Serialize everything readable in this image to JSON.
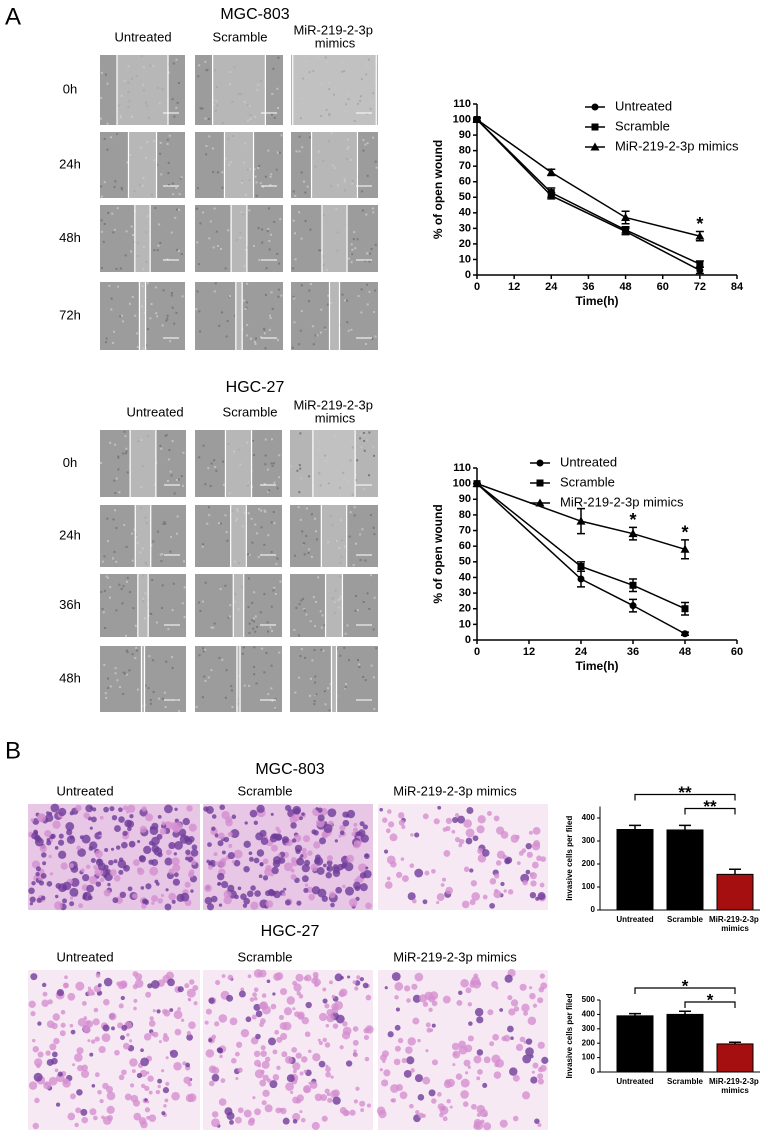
{
  "panel_labels": [
    "A",
    "B"
  ],
  "wound": [
    {
      "title": "MGC-803",
      "columns": [
        "Untreated",
        "Scramble",
        "MiR-219-2-3p mimics"
      ],
      "rows": [
        "0h",
        "24h",
        "48h",
        "72h"
      ]
    },
    {
      "title": "HGC-27",
      "columns": [
        "Untreated",
        "Scramble",
        "MiR-219-2-3p mimics"
      ],
      "rows": [
        "0h",
        "24h",
        "36h",
        "48h"
      ]
    }
  ],
  "invasion": [
    {
      "title": "MGC-803",
      "columns": [
        "Untreated",
        "Scramble",
        "MiR-219-2-3p mimics"
      ]
    },
    {
      "title": "HGC-27",
      "columns": [
        "Untreated",
        "Scramble",
        "MiR-219-2-3p mimics"
      ]
    }
  ],
  "chart_data": [
    {
      "type": "line",
      "x_label": "Time(h)",
      "y_label": "% of open wound",
      "x": [
        0,
        24,
        48,
        72
      ],
      "series": [
        {
          "name": "Untreated",
          "color": "#000000",
          "marker": "circle",
          "values": [
            100,
            51,
            28,
            3
          ],
          "errors": [
            1,
            2,
            2,
            2
          ]
        },
        {
          "name": "Scramble",
          "color": "#000000",
          "marker": "square",
          "values": [
            100,
            53,
            29,
            7
          ],
          "errors": [
            1,
            3,
            2,
            2
          ]
        },
        {
          "name": "MiR-219-2-3p mimics",
          "color": "#000000",
          "marker": "triangle",
          "values": [
            100,
            66,
            37,
            25
          ],
          "errors": [
            1,
            2,
            4,
            3
          ]
        }
      ],
      "xlim": [
        0,
        84
      ],
      "xticks": [
        0,
        12,
        24,
        36,
        48,
        60,
        72,
        84
      ],
      "ylim": [
        0,
        110
      ],
      "yticks": [
        0,
        10,
        20,
        30,
        40,
        50,
        60,
        70,
        80,
        90,
        100,
        110
      ],
      "annotations": [
        {
          "text": "*",
          "x": 72
        }
      ]
    },
    {
      "type": "line",
      "x_label": "Time(h)",
      "y_label": "% of open wound",
      "x": [
        0,
        24,
        36,
        48
      ],
      "series": [
        {
          "name": "Untreated",
          "color": "#000000",
          "marker": "circle",
          "values": [
            100,
            39,
            22,
            4
          ],
          "errors": [
            0,
            5,
            4,
            1
          ]
        },
        {
          "name": "Scramble",
          "color": "#000000",
          "marker": "square",
          "values": [
            100,
            47,
            35,
            20
          ],
          "errors": [
            0,
            3,
            4,
            4
          ]
        },
        {
          "name": "MiR-219-2-3p mimics",
          "color": "#000000",
          "marker": "triangle",
          "values": [
            100,
            76,
            68,
            58
          ],
          "errors": [
            0,
            8,
            4,
            6
          ]
        }
      ],
      "xlim": [
        0,
        60
      ],
      "xticks": [
        0,
        12,
        24,
        36,
        48,
        60
      ],
      "ylim": [
        0,
        110
      ],
      "yticks": [
        0,
        10,
        20,
        30,
        40,
        50,
        60,
        70,
        80,
        90,
        100,
        110
      ],
      "annotations": [
        {
          "text": "*",
          "x": 36
        },
        {
          "text": "*",
          "x": 48
        }
      ]
    },
    {
      "type": "bar",
      "y_label": "Invasive cells per filed",
      "categories": [
        "Untreated",
        "Scramble",
        "MiR-219-2-3p mimics"
      ],
      "values": [
        350,
        348,
        155
      ],
      "errors": [
        18,
        20,
        22
      ],
      "colors": [
        "#000000",
        "#000000",
        "#a50f0f"
      ],
      "ylim": [
        0,
        450
      ],
      "yticks": [
        0,
        100,
        200,
        300,
        400
      ],
      "annotations": [
        "**",
        "**"
      ]
    },
    {
      "type": "bar",
      "y_label": "Invasive cells per filed",
      "categories": [
        "Untreated",
        "Scramble",
        "MiR-219-2-3p mimics"
      ],
      "values": [
        390,
        400,
        195
      ],
      "errors": [
        15,
        22,
        12
      ],
      "colors": [
        "#000000",
        "#000000",
        "#a50f0f"
      ],
      "ylim": [
        0,
        500
      ],
      "yticks": [
        0,
        100,
        200,
        300,
        400,
        500
      ],
      "annotations": [
        "*",
        "*"
      ]
    }
  ]
}
